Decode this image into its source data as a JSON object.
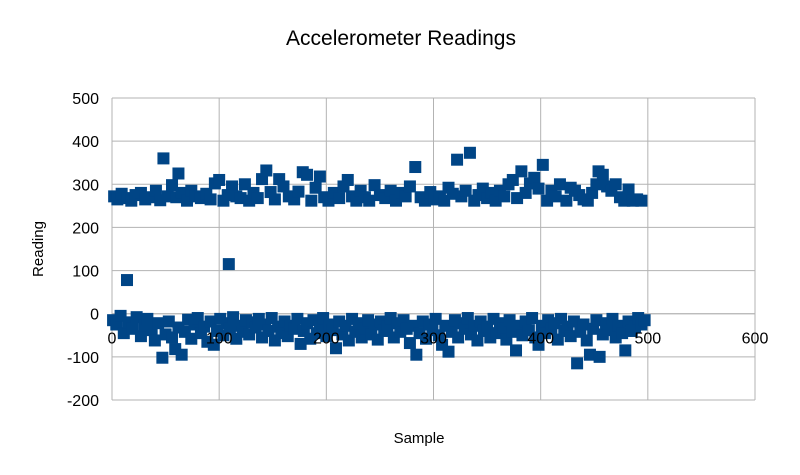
{
  "chart_data": {
    "type": "scatter",
    "title": "Accelerometer Readings",
    "xlabel": "Sample",
    "ylabel": "Reading",
    "xlim": [
      0,
      600
    ],
    "ylim": [
      -200,
      500
    ],
    "x_ticks": [
      0,
      100,
      200,
      300,
      400,
      500,
      600
    ],
    "y_ticks": [
      -200,
      -100,
      0,
      100,
      200,
      300,
      400,
      500
    ],
    "grid": true,
    "legend": "none",
    "marker_color": "#004586",
    "series": [
      {
        "points": [
          [
            2,
            272
          ],
          [
            5,
            265
          ],
          [
            9,
            278
          ],
          [
            14,
            268
          ],
          [
            18,
            262
          ],
          [
            22,
            275
          ],
          [
            27,
            280
          ],
          [
            31,
            265
          ],
          [
            36,
            270
          ],
          [
            41,
            285
          ],
          [
            45,
            263
          ],
          [
            48,
            360
          ],
          [
            52,
            272
          ],
          [
            56,
            298
          ],
          [
            60,
            270
          ],
          [
            62,
            325
          ],
          [
            65,
            280
          ],
          [
            70,
            262
          ],
          [
            74,
            285
          ],
          [
            78,
            272
          ],
          [
            83,
            268
          ],
          [
            88,
            278
          ],
          [
            92,
            265
          ],
          [
            96,
            302
          ],
          [
            100,
            310
          ],
          [
            104,
            262
          ],
          [
            108,
            275
          ],
          [
            112,
            295
          ],
          [
            116,
            272
          ],
          [
            120,
            268
          ],
          [
            124,
            300
          ],
          [
            128,
            262
          ],
          [
            132,
            280
          ],
          [
            136,
            268
          ],
          [
            140,
            312
          ],
          [
            144,
            332
          ],
          [
            148,
            282
          ],
          [
            152,
            265
          ],
          [
            156,
            312
          ],
          [
            160,
            295
          ],
          [
            165,
            272
          ],
          [
            170,
            265
          ],
          [
            174,
            283
          ],
          [
            178,
            328
          ],
          [
            182,
            322
          ],
          [
            186,
            262
          ],
          [
            190,
            292
          ],
          [
            194,
            318
          ],
          [
            198,
            270
          ],
          [
            202,
            262
          ],
          [
            207,
            280
          ],
          [
            212,
            268
          ],
          [
            216,
            295
          ],
          [
            220,
            310
          ],
          [
            224,
            272
          ],
          [
            228,
            262
          ],
          [
            232,
            285
          ],
          [
            236,
            270
          ],
          [
            240,
            262
          ],
          [
            245,
            298
          ],
          [
            250,
            275
          ],
          [
            255,
            268
          ],
          [
            260,
            285
          ],
          [
            265,
            262
          ],
          [
            270,
            280
          ],
          [
            274,
            272
          ],
          [
            278,
            295
          ],
          [
            283,
            340
          ],
          [
            288,
            270
          ],
          [
            292,
            262
          ],
          [
            297,
            282
          ],
          [
            301,
            265
          ],
          [
            306,
            272
          ],
          [
            310,
            262
          ],
          [
            314,
            292
          ],
          [
            318,
            278
          ],
          [
            322,
            357
          ],
          [
            326,
            272
          ],
          [
            330,
            285
          ],
          [
            334,
            373
          ],
          [
            338,
            262
          ],
          [
            342,
            275
          ],
          [
            346,
            290
          ],
          [
            350,
            268
          ],
          [
            354,
            280
          ],
          [
            358,
            262
          ],
          [
            362,
            285
          ],
          [
            366,
            272
          ],
          [
            370,
            300
          ],
          [
            374,
            310
          ],
          [
            378,
            268
          ],
          [
            382,
            330
          ],
          [
            386,
            280
          ],
          [
            390,
            302
          ],
          [
            394,
            315
          ],
          [
            398,
            290
          ],
          [
            402,
            345
          ],
          [
            406,
            262
          ],
          [
            410,
            285
          ],
          [
            414,
            272
          ],
          [
            418,
            300
          ],
          [
            424,
            262
          ],
          [
            428,
            292
          ],
          [
            432,
            285
          ],
          [
            436,
            275
          ],
          [
            440,
            265
          ],
          [
            444,
            262
          ],
          [
            448,
            280
          ],
          [
            452,
            300
          ],
          [
            454,
            330
          ],
          [
            458,
            322
          ],
          [
            462,
            295
          ],
          [
            466,
            285
          ],
          [
            470,
            300
          ],
          [
            474,
            270
          ],
          [
            478,
            262
          ],
          [
            482,
            288
          ],
          [
            486,
            262
          ],
          [
            490,
            265
          ],
          [
            494,
            262
          ],
          [
            14,
            78
          ],
          [
            109,
            115
          ],
          [
            1,
            -15
          ],
          [
            4,
            -25
          ],
          [
            8,
            -5
          ],
          [
            11,
            -45
          ],
          [
            15,
            -20
          ],
          [
            19,
            -35
          ],
          [
            23,
            -8
          ],
          [
            27,
            -52
          ],
          [
            30,
            -28
          ],
          [
            33,
            -12
          ],
          [
            37,
            -38
          ],
          [
            40,
            -62
          ],
          [
            43,
            -22
          ],
          [
            47,
            -102
          ],
          [
            50,
            -48
          ],
          [
            53,
            -18
          ],
          [
            56,
            -55
          ],
          [
            59,
            -82
          ],
          [
            62,
            -32
          ],
          [
            65,
            -95
          ],
          [
            68,
            -42
          ],
          [
            71,
            -14
          ],
          [
            74,
            -58
          ],
          [
            77,
            -25
          ],
          [
            80,
            -10
          ],
          [
            83,
            -45
          ],
          [
            86,
            -30
          ],
          [
            89,
            -65
          ],
          [
            92,
            -18
          ],
          [
            95,
            -72
          ],
          [
            98,
            -40
          ],
          [
            101,
            -12
          ],
          [
            104,
            -50
          ],
          [
            107,
            -22
          ],
          [
            110,
            -35
          ],
          [
            113,
            -8
          ],
          [
            116,
            -58
          ],
          [
            119,
            -28
          ],
          [
            122,
            -42
          ],
          [
            125,
            -15
          ],
          [
            128,
            -48
          ],
          [
            131,
            -20
          ],
          [
            134,
            -32
          ],
          [
            137,
            -12
          ],
          [
            140,
            -55
          ],
          [
            143,
            -25
          ],
          [
            146,
            -40
          ],
          [
            149,
            -10
          ],
          [
            152,
            -62
          ],
          [
            155,
            -30
          ],
          [
            158,
            -45
          ],
          [
            161,
            -18
          ],
          [
            164,
            -52
          ],
          [
            167,
            -28
          ],
          [
            170,
            -35
          ],
          [
            173,
            -12
          ],
          [
            176,
            -70
          ],
          [
            179,
            -40
          ],
          [
            182,
            -22
          ],
          [
            185,
            -58
          ],
          [
            188,
            -15
          ],
          [
            191,
            -45
          ],
          [
            194,
            -30
          ],
          [
            197,
            -10
          ],
          [
            200,
            -52
          ],
          [
            203,
            -25
          ],
          [
            206,
            -38
          ],
          [
            209,
            -80
          ],
          [
            212,
            -18
          ],
          [
            215,
            -48
          ],
          [
            218,
            -28
          ],
          [
            221,
            -62
          ],
          [
            224,
            -12
          ],
          [
            227,
            -42
          ],
          [
            230,
            -22
          ],
          [
            233,
            -55
          ],
          [
            236,
            -35
          ],
          [
            239,
            -15
          ],
          [
            242,
            -48
          ],
          [
            245,
            -25
          ],
          [
            248,
            -60
          ],
          [
            251,
            -18
          ],
          [
            254,
            -40
          ],
          [
            257,
            -30
          ],
          [
            260,
            -10
          ],
          [
            263,
            -55
          ],
          [
            266,
            -22
          ],
          [
            269,
            -42
          ],
          [
            272,
            -15
          ],
          [
            275,
            -35
          ],
          [
            278,
            -68
          ],
          [
            281,
            -28
          ],
          [
            284,
            -95
          ],
          [
            287,
            -45
          ],
          [
            290,
            -18
          ],
          [
            293,
            -58
          ],
          [
            296,
            -25
          ],
          [
            299,
            -38
          ],
          [
            302,
            -12
          ],
          [
            305,
            -50
          ],
          [
            308,
            -72
          ],
          [
            311,
            -28
          ],
          [
            314,
            -88
          ],
          [
            317,
            -42
          ],
          [
            320,
            -15
          ],
          [
            323,
            -55
          ],
          [
            326,
            -22
          ],
          [
            329,
            -35
          ],
          [
            332,
            -10
          ],
          [
            335,
            -48
          ],
          [
            338,
            -28
          ],
          [
            341,
            -62
          ],
          [
            344,
            -18
          ],
          [
            347,
            -40
          ],
          [
            350,
            -30
          ],
          [
            353,
            -55
          ],
          [
            356,
            -12
          ],
          [
            359,
            -45
          ],
          [
            362,
            -22
          ],
          [
            365,
            -35
          ],
          [
            368,
            -60
          ],
          [
            371,
            -15
          ],
          [
            374,
            -42
          ],
          [
            377,
            -85
          ],
          [
            380,
            -28
          ],
          [
            383,
            -50
          ],
          [
            386,
            -18
          ],
          [
            389,
            -38
          ],
          [
            392,
            -10
          ],
          [
            395,
            -55
          ],
          [
            398,
            -72
          ],
          [
            401,
            -28
          ],
          [
            404,
            -45
          ],
          [
            407,
            -15
          ],
          [
            410,
            -35
          ],
          [
            413,
            -22
          ],
          [
            416,
            -60
          ],
          [
            419,
            -12
          ],
          [
            422,
            -40
          ],
          [
            425,
            -30
          ],
          [
            428,
            -52
          ],
          [
            431,
            -18
          ],
          [
            434,
            -115
          ],
          [
            437,
            -42
          ],
          [
            440,
            -25
          ],
          [
            443,
            -62
          ],
          [
            446,
            -95
          ],
          [
            449,
            -35
          ],
          [
            452,
            -15
          ],
          [
            455,
            -100
          ],
          [
            458,
            -48
          ],
          [
            461,
            -22
          ],
          [
            464,
            -38
          ],
          [
            467,
            -12
          ],
          [
            470,
            -55
          ],
          [
            473,
            -28
          ],
          [
            476,
            -45
          ],
          [
            479,
            -85
          ],
          [
            482,
            -18
          ],
          [
            485,
            -40
          ],
          [
            488,
            -30
          ],
          [
            491,
            -10
          ],
          [
            494,
            -25
          ],
          [
            497,
            -15
          ]
        ]
      }
    ]
  }
}
